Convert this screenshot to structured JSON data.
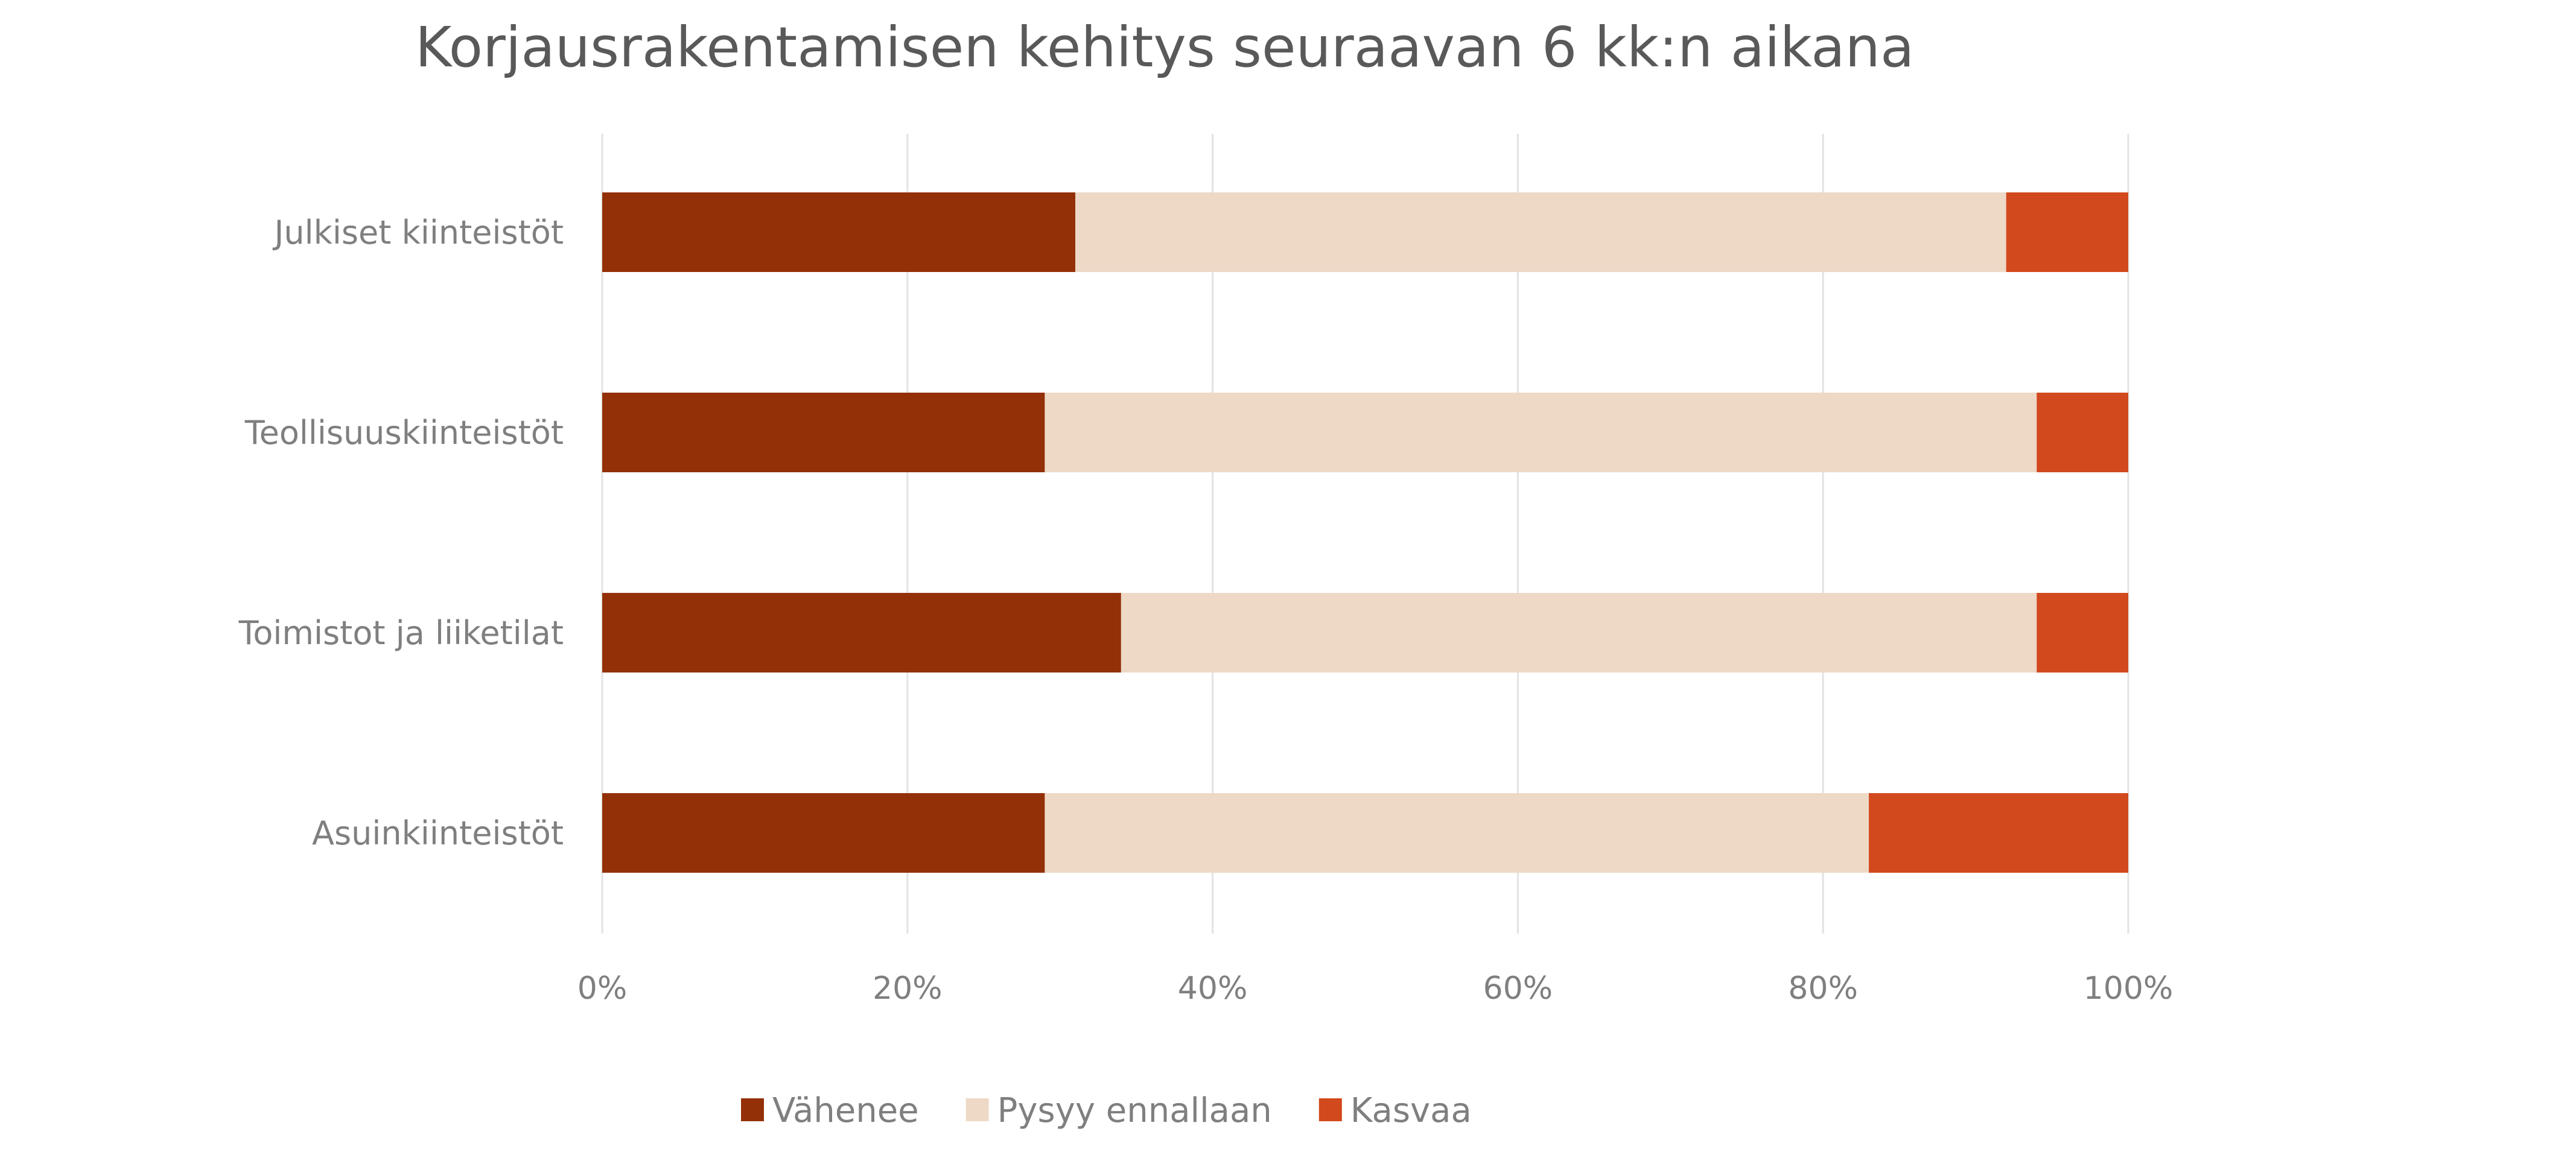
{
  "chart_data": {
    "type": "bar",
    "orientation": "horizontal",
    "stacked": "percent",
    "title": "Korjausrakentamisen kehitys seuraavan 6 kk:n aikana",
    "categories": [
      "Julkiset kiinteistöt",
      "Teollisuuskiinteistöt",
      "Toimistot ja liiketilat",
      "Asuinkiinteistöt"
    ],
    "series": [
      {
        "name": "Vähenee",
        "color": "#933007",
        "values": [
          31,
          29,
          34,
          29
        ]
      },
      {
        "name": "Pysyy ennallaan",
        "color": "#EDD9C6",
        "values": [
          61,
          65,
          60,
          54
        ]
      },
      {
        "name": "Kasvaa",
        "color": "#D2491D",
        "values": [
          8,
          6,
          6,
          17
        ]
      }
    ],
    "xlim": [
      0,
      100
    ],
    "xticks": [
      "0%",
      "20%",
      "40%",
      "60%",
      "80%",
      "100%"
    ],
    "grid": true,
    "legend_position": "bottom"
  }
}
